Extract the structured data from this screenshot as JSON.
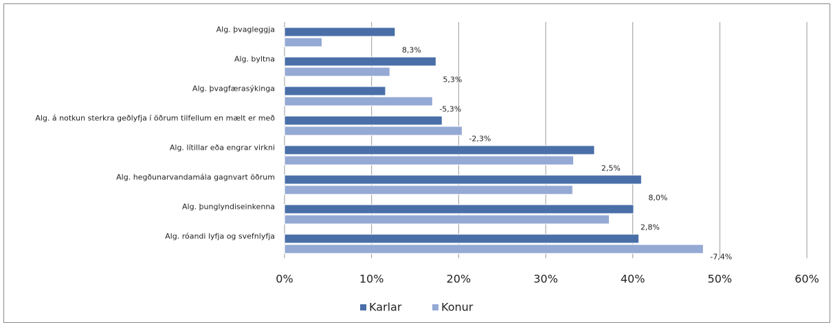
{
  "chart_data": {
    "type": "bar",
    "orientation": "horizontal",
    "categories": [
      "Alg. þvagleggja",
      "Alg. byltna",
      "Alg. þvagfærasýkinga",
      "Alg. á notkun sterkra geðlyfja í öðrum tilfellum en mælt er með",
      "Alg. lítillar eða engrar virkni",
      "Alg. hegðunarvandamála gagnvart öðrum",
      "Alg. þunglyndiseinkenna",
      "Alg. róandi lyfja og svefnlyfja"
    ],
    "series": [
      {
        "name": "Karlar",
        "color": "#4a6fa8",
        "values": [
          12.7,
          17.4,
          11.6,
          18.1,
          35.6,
          41.0,
          40.1,
          40.7
        ]
      },
      {
        "name": "Konur",
        "color": "#94a9d4",
        "values": [
          4.3,
          12.1,
          17.0,
          20.4,
          33.2,
          33.1,
          37.3,
          48.1
        ]
      }
    ],
    "annotations": [
      "8,3%",
      "5,3%",
      "-5,3%",
      "-2,3%",
      "2,5%",
      "8,0%",
      "2,8%",
      "-7,4%"
    ],
    "xlim": [
      0,
      60
    ],
    "xticks": [
      {
        "value": 0,
        "label": "0%"
      },
      {
        "value": 10,
        "label": "10%"
      },
      {
        "value": 20,
        "label": "20%"
      },
      {
        "value": 30,
        "label": "30%"
      },
      {
        "value": 40,
        "label": "40%"
      },
      {
        "value": 50,
        "label": "50%"
      },
      {
        "value": 60,
        "label": "60%"
      }
    ],
    "grid": true,
    "legend": "bottom"
  }
}
